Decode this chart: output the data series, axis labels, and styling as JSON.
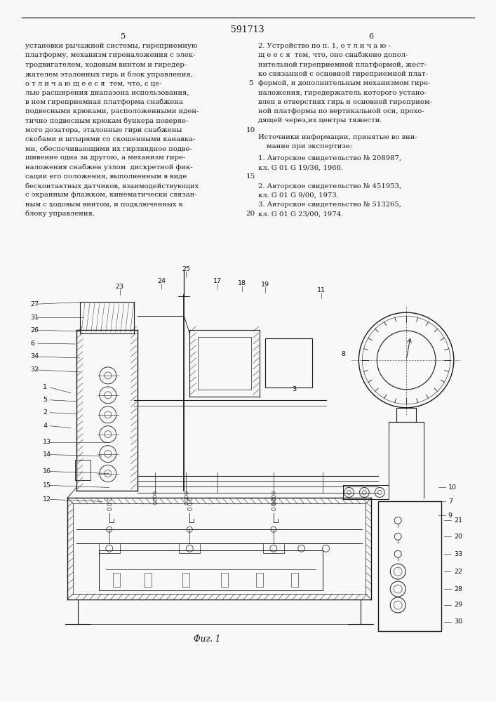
{
  "page_width": 7.07,
  "page_height": 10.0,
  "bg_color": "#f8f8f5",
  "patent_number": "591713",
  "col_left_num": "5",
  "col_right_num": "6",
  "left_text": [
    "установки рычажной системы, гиреприемную",
    "платформу, механизм гиреналожения с элек-",
    "тродвигателем, ходовым винтом и гиредер-",
    "жателем эталонных гирь и блок управления,",
    "о т л и ч а ю щ е е с я  тем, что, с це-",
    "лью расширения диапазона использования,",
    "в нем гиреприемная платформа снабжена",
    "подвесными крюками, расположенными иден-",
    "тично подвесным крюкам бункера поверяе-",
    "мого дозатора, эталонные гири снабжены",
    "скобами и штырями со скошенными канавка-",
    "ми, обеспечивающими их гирляндное подве-",
    "шивение одна за другою, а механизм гире-",
    "наложения снабжен узлом  дискретной фик-",
    "сации его положения, выполненным в виде",
    "бесконтактных датчиков, взаимодействующих",
    "с экранным флажком, кинематически связан-",
    "ным с ходовым винтом, и подключенных к",
    "блоку управления."
  ],
  "right_text_top": [
    "2. Устройство по п. 1, о т л и ч а ю -",
    "щ е е с я  тем, что, оно снабжено допол-",
    "нительной гиреприемной платформой, жест-",
    "ко связанной с основной гиреприемной плат-",
    "формой, и дополнительным механизмом гире-",
    "наложения, гиредержатель которого устано-",
    "влен в отверстиях гирь и основной гиреприем-",
    "ной платформы по вертикальной оси, прохо-",
    "дящей через,их центры тяжести."
  ],
  "sources_header": "Источники информации, принятые во вни-",
  "sources_header2": "мание при экспертизе:",
  "sources": [
    "1. Авторское свидетельство № 208987,",
    "кл. G 01 G 19/36, 1966.",
    "",
    "2. Авторское свидетельство № 451953,",
    "кл. G 01 G 9/00, 1973.",
    "3. Авторское свидетельство № 513265,",
    "кл. G 01 G 23/00, 1974."
  ],
  "fig_caption": "Фиг. 1"
}
